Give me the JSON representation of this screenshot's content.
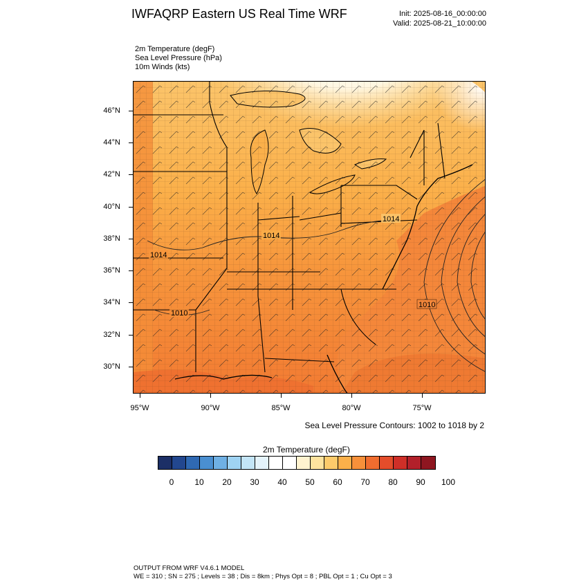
{
  "header": {
    "title": "IWFAQRP Eastern US Real Time WRF",
    "init": "Init: 2025-08-16_00:00:00",
    "valid": "Valid: 2025-08-21_10:00:00"
  },
  "fields": [
    "2m Temperature   (degF)",
    "Sea Level Pressure   (hPa)",
    "10m Winds   (kts)"
  ],
  "map": {
    "lat_labels": [
      "46°N",
      "44°N",
      "42°N",
      "40°N",
      "38°N",
      "36°N",
      "34°N",
      "32°N",
      "30°N"
    ],
    "lon_labels": [
      "95°W",
      "90°W",
      "85°W",
      "80°W",
      "75°W"
    ],
    "pressure_labels": [
      "1014",
      "1014",
      "1010",
      "1010",
      "1014"
    ],
    "contour_note": "Sea Level Pressure Contours: 1002 to 1018 by 2"
  },
  "colorbar": {
    "title": "2m Temperature  (degF)",
    "ticks": [
      "0",
      "10",
      "20",
      "30",
      "40",
      "50",
      "60",
      "70",
      "80",
      "90",
      "100"
    ],
    "colors": [
      "#1c2f66",
      "#22478f",
      "#2f69b3",
      "#4a8fd1",
      "#6fb0e4",
      "#9fd3f3",
      "#c3e5f7",
      "#e4f3fb",
      "#ffffff",
      "#ffffff",
      "#fff3cf",
      "#fee39e",
      "#fdcb6b",
      "#fbb04a",
      "#f7903a",
      "#f06d2f",
      "#e44d2b",
      "#cf2f28",
      "#b2202a",
      "#8e1620"
    ]
  },
  "footer": {
    "line1": "OUTPUT FROM WRF V4.6.1 MODEL",
    "line2": "WE = 310 ; SN = 275 ; Levels = 38 ; Dis = 8km ; Phys Opt = 8 ; PBL Opt = 1 ; Cu Opt = 3"
  }
}
